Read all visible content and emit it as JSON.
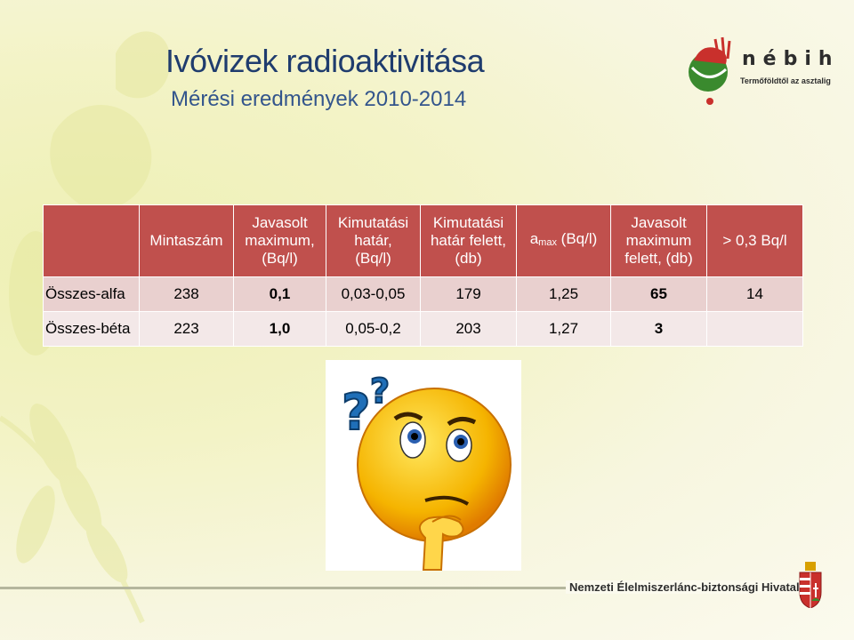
{
  "slide": {
    "title": "Ivóvizek radioaktivitása",
    "subtitle": "Mérési eredmények 2010-2014"
  },
  "logo": {
    "name": "nébih",
    "tagline": "Termőföldtől az asztalig"
  },
  "table": {
    "headers": {
      "col1": "",
      "col2": "Mintaszám",
      "col3_line1": "Javasolt",
      "col3_line2": "maximum,",
      "col3_line3": "(Bq/l)",
      "col4_line1": "Kimutatási",
      "col4_line2": "határ,",
      "col4_line3": "(Bq/l)",
      "col5_line1": "Kimutatási",
      "col5_line2": "határ felett,",
      "col5_line3": "(db)",
      "col6_main": "a",
      "col6_sub": "max",
      "col6_unit": " (Bq/l)",
      "col7_line1": "Javasolt",
      "col7_line2": "maximum",
      "col7_line3": "felett, (db)",
      "col8": "> 0,3 Bq/l"
    },
    "rows": [
      {
        "label": "Összes-alfa",
        "mintaszam": "238",
        "javasolt_max": "0,1",
        "kimutatasi_hatar": "0,03-0,05",
        "hatar_felett": "179",
        "a_max": "1,25",
        "maximum_felett": "65",
        "over_03": "14"
      },
      {
        "label": "Összes-béta",
        "mintaszam": "223",
        "javasolt_max": "1,0",
        "kimutatasi_hatar": "0,05-0,2",
        "hatar_felett": "203",
        "a_max": "1,27",
        "maximum_felett": "3",
        "over_03": ""
      }
    ]
  },
  "footer": {
    "text": "Nemzeti Élelmiszerlánc-biztonsági Hivatal"
  },
  "colors": {
    "title": "#1f3c6e",
    "header_bg": "#c0504d",
    "row1_bg": "#e9d0cf",
    "row2_bg": "#f3e8e8",
    "smiley_face": "#f5b400"
  },
  "icons": [
    "nebih-logo-icon",
    "thinking-smiley-icon",
    "question-mark-icon",
    "hungarian-coat-of-arms-icon"
  ]
}
